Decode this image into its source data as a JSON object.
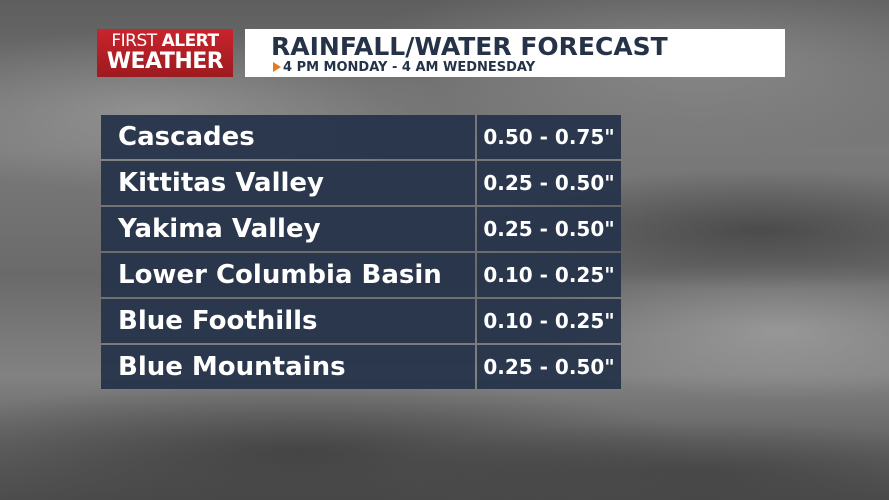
{
  "logo": {
    "first": "FIRST",
    "alert": "ALERT",
    "weather": "WEATHER"
  },
  "header": {
    "title": "RAINFALL/WATER FORECAST",
    "subtitle": "4 PM MONDAY - 4 AM WEDNESDAY"
  },
  "table": {
    "rows": [
      [
        "Cascades",
        "0.50 - 0.75\""
      ],
      [
        "Kittitas Valley",
        "0.25 - 0.50\""
      ],
      [
        "Yakima Valley",
        "0.25 - 0.50\""
      ],
      [
        "Lower Columbia Basin",
        "0.10 - 0.25\""
      ],
      [
        "Blue Foothills",
        "0.10 - 0.25\""
      ],
      [
        "Blue Mountains",
        "0.25 - 0.50\""
      ]
    ]
  }
}
